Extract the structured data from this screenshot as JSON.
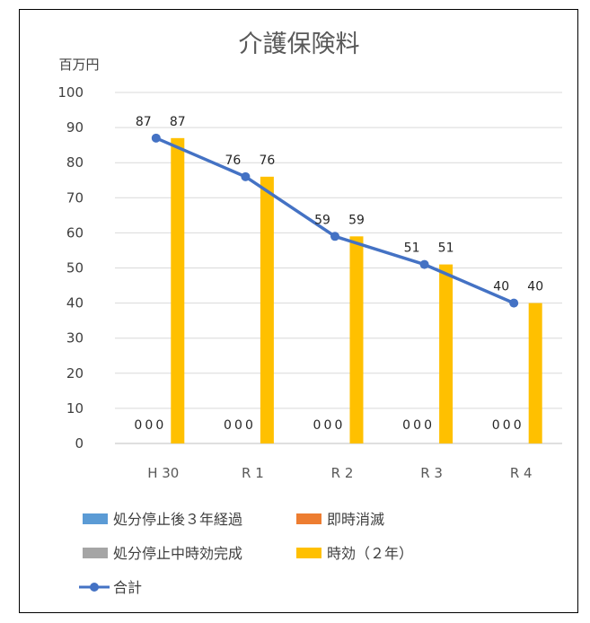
{
  "chart_data": {
    "type": "bar",
    "title": "介護保険料",
    "ylabel": "百万円",
    "xlabel": "",
    "categories": [
      "H 30",
      "R 1",
      "R 2",
      "R 3",
      "R 4"
    ],
    "ylim": [
      0,
      100
    ],
    "yticks": [
      0,
      10,
      20,
      30,
      40,
      50,
      60,
      70,
      80,
      90,
      100
    ],
    "grid": true,
    "legend_position": "bottom",
    "series": [
      {
        "name": "処分停止後３年経過",
        "kind": "bar",
        "color": "#5b9bd5",
        "values": [
          0,
          0,
          0,
          0,
          0
        ]
      },
      {
        "name": "即時消滅",
        "kind": "bar",
        "color": "#ed7d31",
        "values": [
          0,
          0,
          0,
          0,
          0
        ]
      },
      {
        "name": "処分停止中時効完成",
        "kind": "bar",
        "color": "#a5a5a5",
        "values": [
          0,
          0,
          0,
          0,
          0
        ]
      },
      {
        "name": "時効（２年）",
        "kind": "bar",
        "color": "#ffc000",
        "values": [
          87,
          76,
          59,
          51,
          40
        ]
      },
      {
        "name": "合計",
        "kind": "line",
        "color": "#4472c4",
        "values": [
          87,
          76,
          59,
          51,
          40
        ]
      }
    ]
  }
}
